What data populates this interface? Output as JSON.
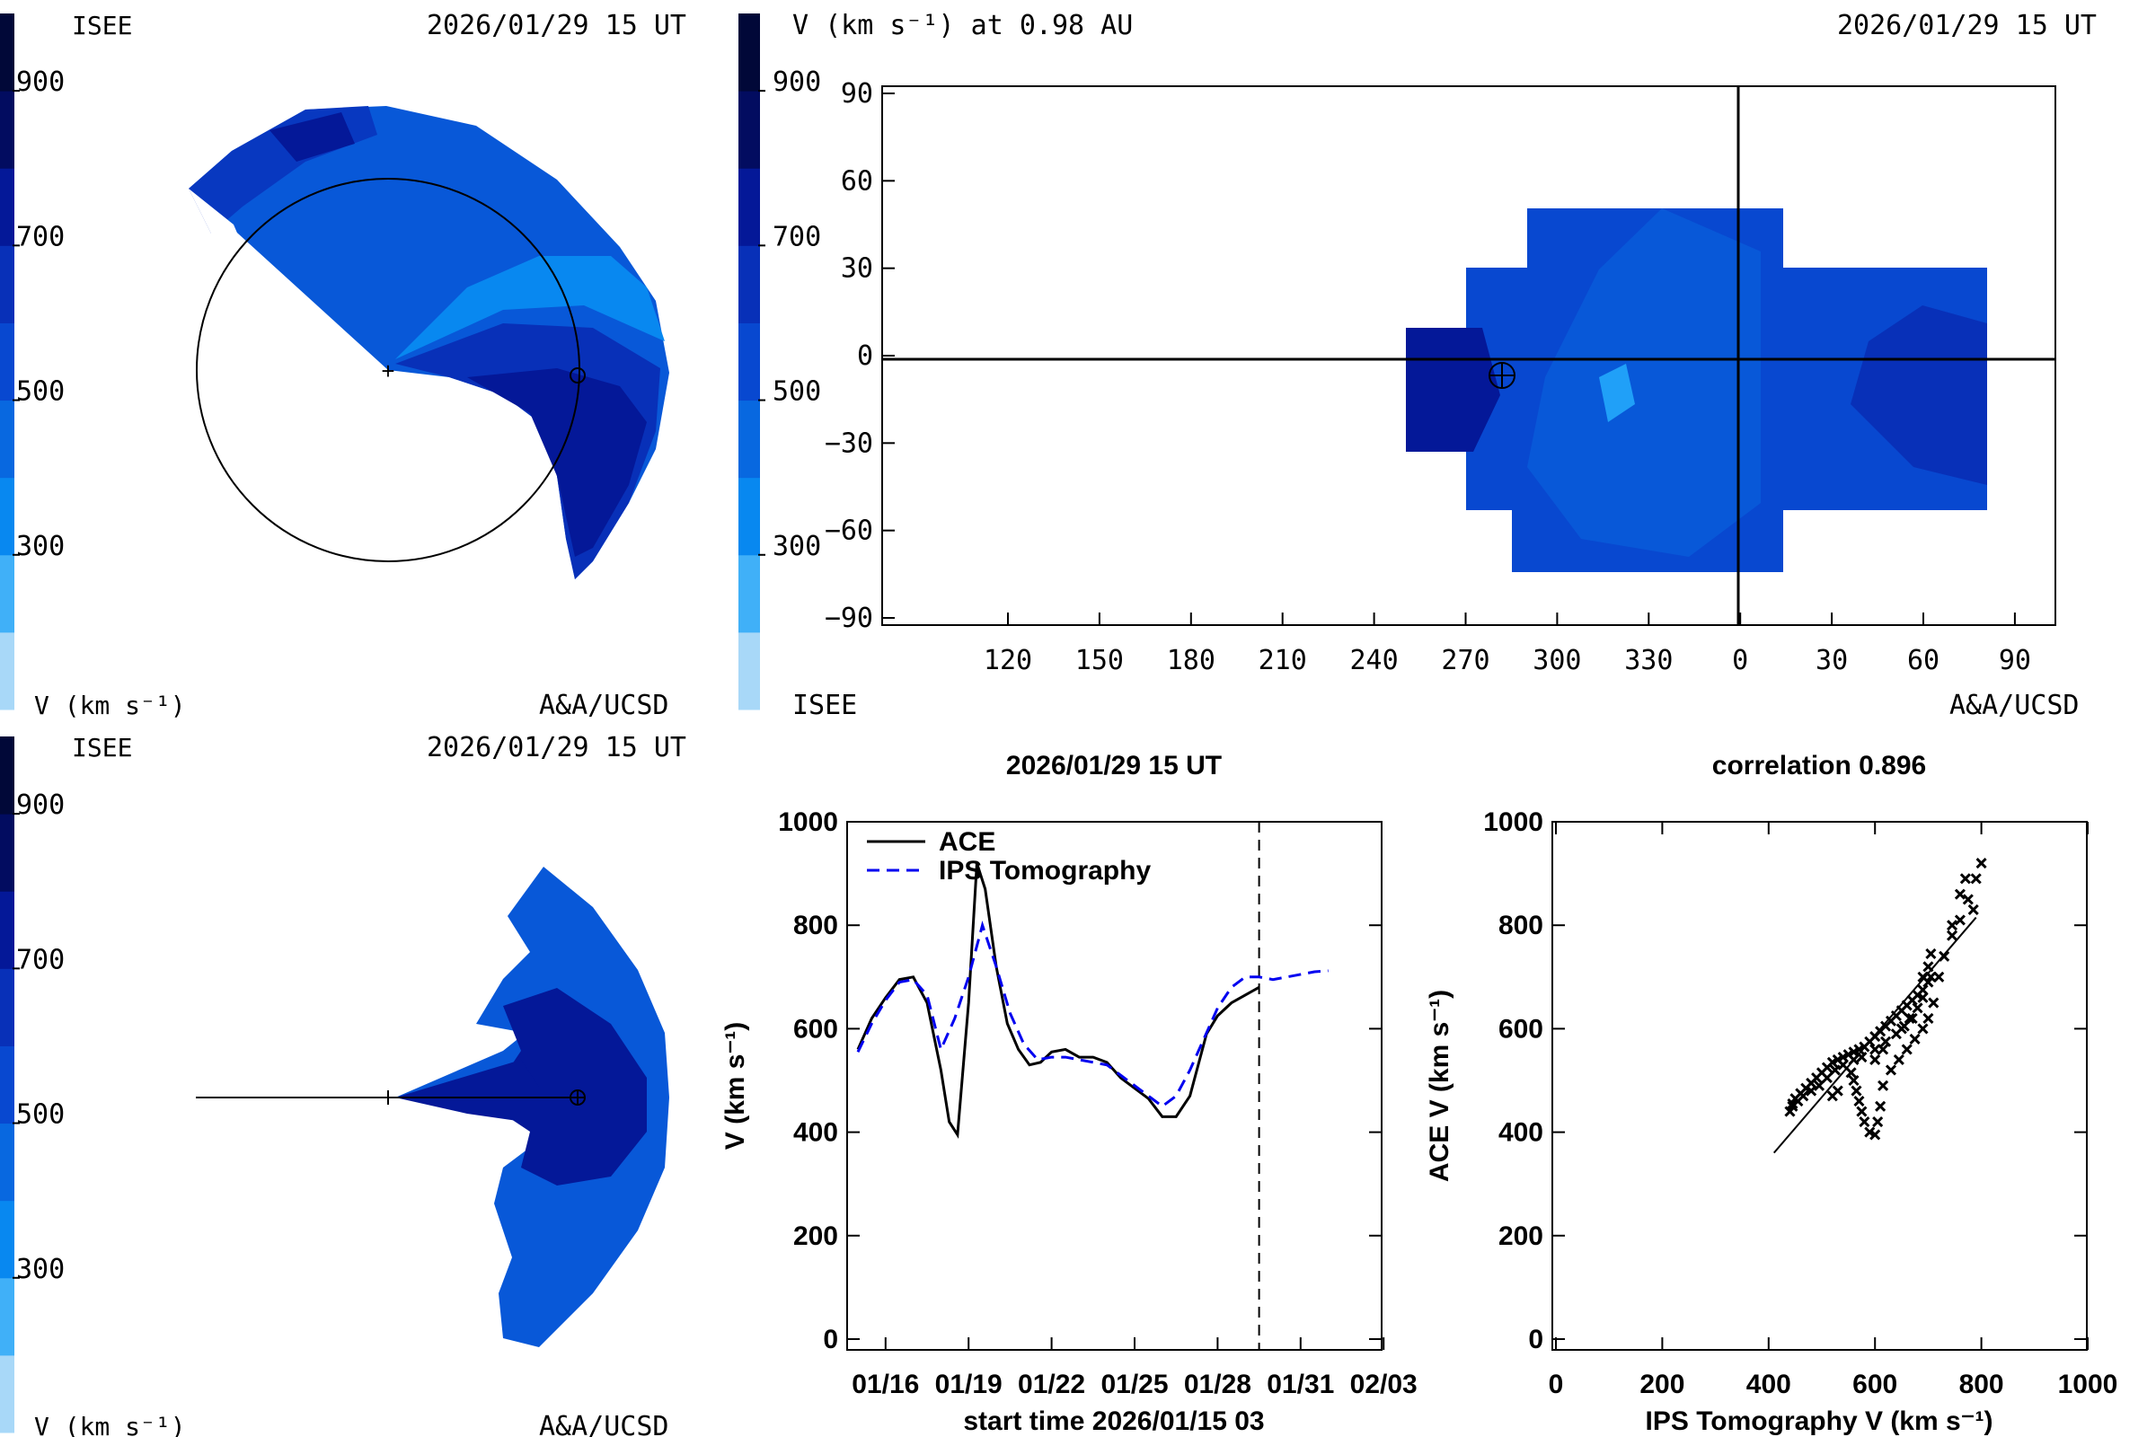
{
  "colorscale": {
    "bands": [
      "#a8d8f8",
      "#40b0f8",
      "#0888f0",
      "#0868e0",
      "#0848d0",
      "#0830b8",
      "#041898",
      "#020c60",
      "#010838"
    ],
    "ticks": [
      "300",
      "500",
      "700",
      "900"
    ]
  },
  "panels": {
    "top_left": {
      "title_left": "ISEE",
      "title_right": "2026/01/29 15 UT",
      "bottom_left": "V (km s⁻¹)",
      "bottom_right": "A&A/UCSD"
    },
    "top_right": {
      "colorbar_label": "V (km s⁻¹) at 0.98 AU",
      "title_right": "2026/01/29 15 UT",
      "bottom_left": "ISEE",
      "bottom_right": "A&A/UCSD",
      "yticks": [
        "90",
        "60",
        "30",
        "0",
        "−30",
        "−60",
        "−90"
      ],
      "xticks": [
        "120",
        "150",
        "180",
        "210",
        "240",
        "270",
        "300",
        "330",
        "0",
        "30",
        "60",
        "90"
      ]
    },
    "bottom_left": {
      "title_left": "ISEE",
      "title_right": "2026/01/29 15 UT",
      "bottom_left": "V (km s⁻¹)",
      "bottom_right": "A&A/UCSD"
    }
  },
  "chart_data": [
    {
      "type": "line",
      "title": "2026/01/29 15 UT",
      "xlabel": "start time 2026/01/15 03",
      "ylabel": "V (km s⁻¹)",
      "ylim": [
        0,
        1000
      ],
      "xlim": [
        0,
        19
      ],
      "x_ticks": [
        "01/16",
        "01/19",
        "01/22",
        "01/25",
        "01/28",
        "01/31",
        "02/03"
      ],
      "y_ticks": [
        "0",
        "200",
        "400",
        "600",
        "800",
        "1000"
      ],
      "vline_x": 14.5,
      "legend_position": "top-left",
      "series": [
        {
          "name": "ACE",
          "color": "#000000",
          "dash": "solid",
          "x": [
            0,
            0.5,
            1,
            1.5,
            2,
            2.5,
            3,
            3.3,
            3.6,
            4,
            4.3,
            4.6,
            5,
            5.4,
            5.8,
            6.2,
            6.6,
            7,
            7.5,
            8,
            8.5,
            9,
            9.5,
            10,
            10.5,
            11,
            11.5,
            12,
            12.3,
            12.6,
            13,
            13.5,
            14,
            14.5
          ],
          "y": [
            560,
            620,
            660,
            695,
            700,
            650,
            520,
            420,
            395,
            650,
            920,
            870,
            720,
            610,
            560,
            530,
            535,
            555,
            560,
            545,
            545,
            535,
            505,
            485,
            465,
            430,
            430,
            470,
            530,
            590,
            625,
            650,
            665,
            680
          ]
        },
        {
          "name": "IPS Tomography",
          "color": "#0000f0",
          "dash": "dashed",
          "x": [
            0,
            0.5,
            1,
            1.5,
            2,
            2.5,
            3,
            3.5,
            4,
            4.5,
            5,
            5.5,
            6,
            6.5,
            7,
            7.5,
            8,
            8.5,
            9,
            9.5,
            10,
            10.5,
            11,
            11.5,
            12,
            12.5,
            13,
            13.5,
            14,
            14.5,
            15,
            15.5,
            16,
            16.5,
            17
          ],
          "y": [
            555,
            610,
            655,
            690,
            695,
            665,
            560,
            620,
            700,
            800,
            720,
            630,
            570,
            540,
            545,
            545,
            540,
            535,
            530,
            510,
            490,
            470,
            450,
            470,
            520,
            580,
            640,
            680,
            700,
            700,
            695,
            700,
            705,
            710,
            712
          ]
        }
      ]
    },
    {
      "type": "scatter",
      "title": "correlation 0.896",
      "xlabel": "IPS Tomography V (km s⁻¹)",
      "ylabel": "ACE V (km s⁻¹)",
      "xlim": [
        0,
        1000
      ],
      "ylim": [
        0,
        1000
      ],
      "x_ticks": [
        "0",
        "200",
        "400",
        "600",
        "800",
        "1000"
      ],
      "y_ticks": [
        "0",
        "200",
        "400",
        "600",
        "800",
        "1000"
      ],
      "points": [
        [
          440,
          440
        ],
        [
          445,
          455
        ],
        [
          450,
          465
        ],
        [
          460,
          475
        ],
        [
          470,
          485
        ],
        [
          480,
          495
        ],
        [
          490,
          505
        ],
        [
          500,
          515
        ],
        [
          510,
          525
        ],
        [
          520,
          535
        ],
        [
          530,
          540
        ],
        [
          540,
          545
        ],
        [
          550,
          550
        ],
        [
          560,
          555
        ],
        [
          570,
          560
        ],
        [
          580,
          565
        ],
        [
          590,
          575
        ],
        [
          600,
          585
        ],
        [
          610,
          595
        ],
        [
          620,
          605
        ],
        [
          630,
          615
        ],
        [
          640,
          625
        ],
        [
          650,
          635
        ],
        [
          660,
          645
        ],
        [
          670,
          655
        ],
        [
          680,
          665
        ],
        [
          690,
          675
        ],
        [
          700,
          690
        ],
        [
          705,
          700
        ],
        [
          690,
          660
        ],
        [
          680,
          640
        ],
        [
          670,
          620
        ],
        [
          655,
          605
        ],
        [
          640,
          590
        ],
        [
          620,
          575
        ],
        [
          600,
          560
        ],
        [
          575,
          545
        ],
        [
          560,
          540
        ],
        [
          540,
          530
        ],
        [
          525,
          520
        ],
        [
          510,
          505
        ],
        [
          495,
          490
        ],
        [
          480,
          480
        ],
        [
          465,
          470
        ],
        [
          455,
          460
        ],
        [
          445,
          450
        ],
        [
          555,
          515
        ],
        [
          560,
          500
        ],
        [
          565,
          480
        ],
        [
          570,
          460
        ],
        [
          575,
          440
        ],
        [
          580,
          420
        ],
        [
          590,
          400
        ],
        [
          600,
          395
        ],
        [
          605,
          420
        ],
        [
          610,
          450
        ],
        [
          615,
          490
        ],
        [
          630,
          520
        ],
        [
          645,
          540
        ],
        [
          660,
          560
        ],
        [
          675,
          580
        ],
        [
          690,
          600
        ],
        [
          700,
          620
        ],
        [
          710,
          650
        ],
        [
          720,
          700
        ],
        [
          730,
          740
        ],
        [
          745,
          780
        ],
        [
          760,
          810
        ],
        [
          775,
          850
        ],
        [
          790,
          890
        ],
        [
          800,
          920
        ],
        [
          785,
          830
        ],
        [
          745,
          800
        ],
        [
          760,
          860
        ],
        [
          770,
          890
        ],
        [
          700,
          720
        ],
        [
          705,
          745
        ],
        [
          690,
          700
        ],
        [
          520,
          470
        ],
        [
          530,
          480
        ],
        [
          650,
          600
        ],
        [
          665,
          620
        ],
        [
          615,
          560
        ],
        [
          600,
          540
        ]
      ],
      "fit_line": [
        [
          410,
          360
        ],
        [
          790,
          815
        ]
      ]
    }
  ]
}
